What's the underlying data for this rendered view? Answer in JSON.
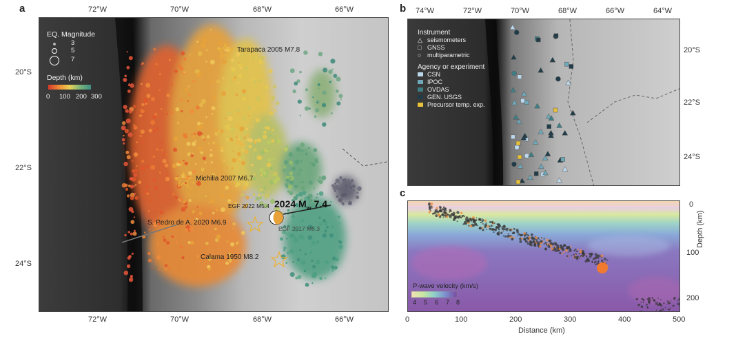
{
  "panel_a": {
    "letter": "a",
    "top_ticks": [
      "72°W",
      "70°W",
      "68°W",
      "66°W"
    ],
    "bottom_ticks": [
      "72°W",
      "70°W",
      "68°W",
      "66°W"
    ],
    "left_ticks": [
      "20°S",
      "22°S",
      "24°S"
    ],
    "legend": {
      "magnitude_title": "EQ. Magnitude",
      "magnitudes": [
        "3",
        "5",
        "7"
      ],
      "depth_title": "Depth (km)",
      "depth_ticks": [
        "0",
        "100",
        "200",
        "300"
      ]
    },
    "events": {
      "tarapaca": "Tarapaca 2005 M7.8",
      "michilla": "Michilla 2007 M6.7",
      "pedro": "S. Pedro de A. 2020 M6.9",
      "calama": "Calama 1950 M8.2",
      "egf2022": "EGF 2022 M5.4",
      "egf2017": "EGF 2017 M5.3",
      "main_prefix": "2024 M",
      "main_sub": "w",
      "main_suffix": " 7.4"
    }
  },
  "panel_b": {
    "letter": "b",
    "top_ticks": [
      "74°W",
      "72°W",
      "70°W",
      "68°W",
      "66°W",
      "64°W"
    ],
    "right_ticks": [
      "20°S",
      "22°S",
      "24°S"
    ],
    "legend": {
      "instrument_title": "Instrument",
      "instruments": [
        "seismometers",
        "GNSS",
        "multiparametric"
      ],
      "agency_title": "Agency or experiment",
      "agencies": [
        {
          "label": "CSN",
          "color": "#bcd8ec"
        },
        {
          "label": "IPOC",
          "color": "#6fa8b8"
        },
        {
          "label": "OVDAS",
          "color": "#3e7f86"
        },
        {
          "label": "GEN. USGS",
          "color": "#1f3c48"
        },
        {
          "label": "Precursor temp. exp.",
          "color": "#e8c23a"
        }
      ]
    }
  },
  "panel_c": {
    "letter": "c",
    "x_ticks": [
      "0",
      "100",
      "200",
      "300",
      "400",
      "500"
    ],
    "x_label": "Distance (km)",
    "y_ticks": [
      "0",
      "100",
      "200"
    ],
    "y_label": "Depth (km)",
    "velocity_title": "P-wave velocity (km/s)",
    "velocity_ticks": [
      "4",
      "5",
      "6",
      "7",
      "8"
    ]
  }
}
